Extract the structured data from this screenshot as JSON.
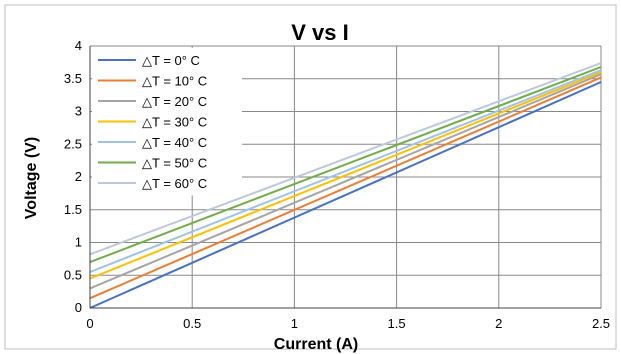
{
  "chart_data": {
    "type": "line",
    "title": "V vs I",
    "xlabel": "Current (A)",
    "ylabel": "Voltage (V)",
    "xlim": [
      0,
      2.5
    ],
    "ylim": [
      0,
      4
    ],
    "xticks": [
      "0",
      "0.5",
      "1",
      "1.5",
      "2",
      "2.5"
    ],
    "yticks": [
      "0",
      "0.5",
      "1",
      "1.5",
      "2",
      "2.5",
      "3",
      "3.5",
      "4"
    ],
    "grid": true,
    "legend_position": "top-left",
    "series": [
      {
        "name": "△T = 0°  C",
        "color": "#4472c4",
        "x": [
          0,
          2.5
        ],
        "y": [
          0.0,
          3.45
        ]
      },
      {
        "name": "△T = 10°  C",
        "color": "#ed7d31",
        "x": [
          0,
          2.5
        ],
        "y": [
          0.15,
          3.52
        ]
      },
      {
        "name": "△T = 20°  C",
        "color": "#a5a5a5",
        "x": [
          0,
          2.5
        ],
        "y": [
          0.3,
          3.57
        ]
      },
      {
        "name": "△T = 30°  C",
        "color": "#ffc000",
        "x": [
          0,
          2.5
        ],
        "y": [
          0.45,
          3.6
        ]
      },
      {
        "name": "△T = 40°  C",
        "color": "#9dc3e6",
        "x": [
          0,
          2.5
        ],
        "y": [
          0.55,
          3.63
        ]
      },
      {
        "name": "△T = 50°  C",
        "color": "#70ad47",
        "x": [
          0,
          2.5
        ],
        "y": [
          0.7,
          3.68
        ]
      },
      {
        "name": "△T = 60°  C",
        "color": "#bcc9dc",
        "x": [
          0,
          2.5
        ],
        "y": [
          0.82,
          3.74
        ]
      }
    ]
  }
}
